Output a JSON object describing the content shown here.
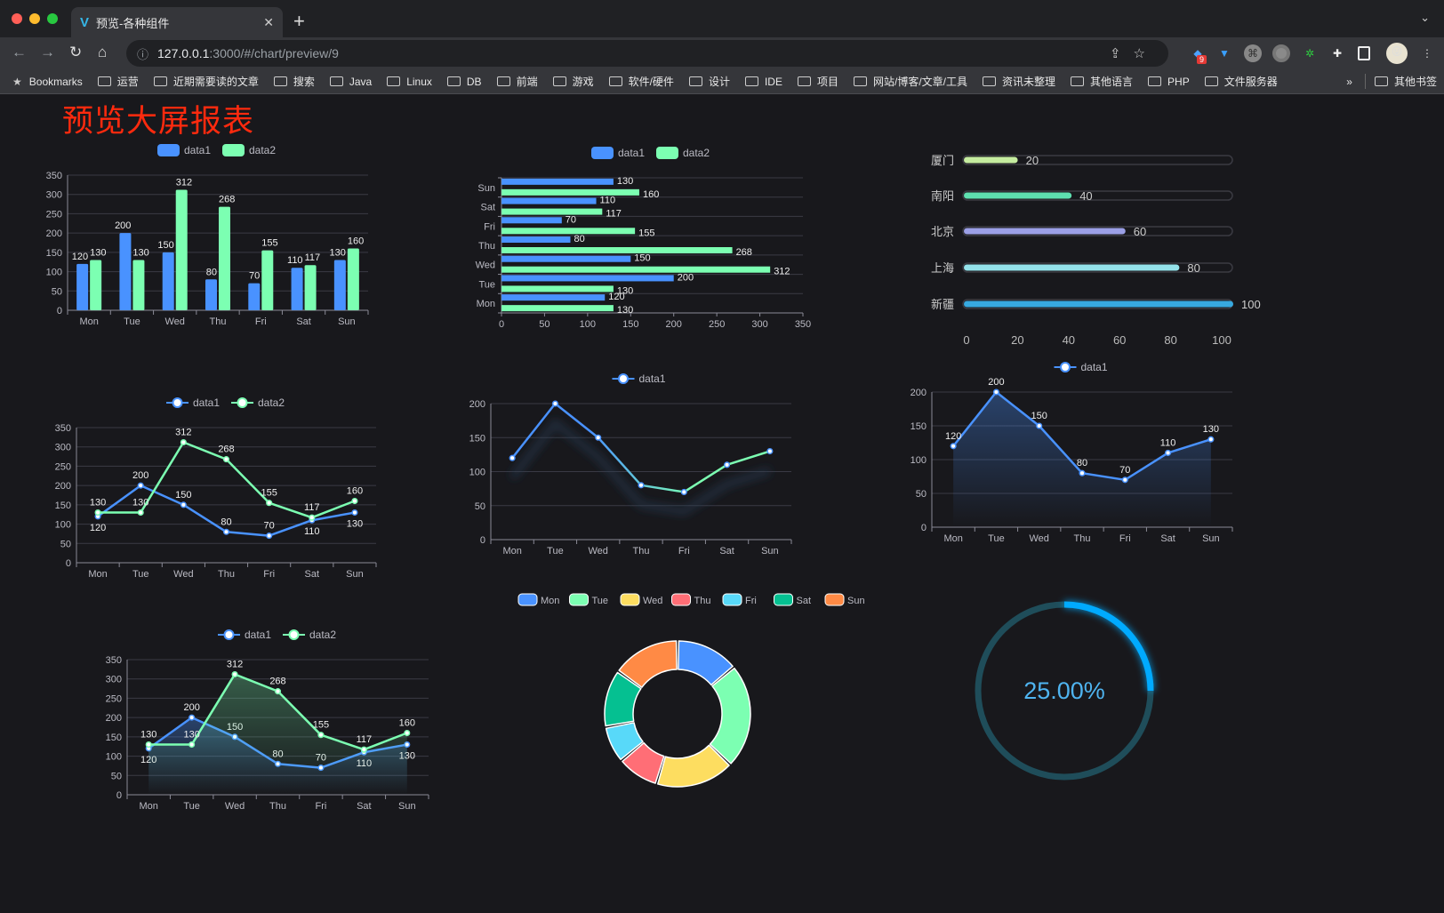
{
  "browser": {
    "tab_title": "预览-各种组件",
    "url_host": "127.0.0.1",
    "url_path": ":3000/#/chart/preview/9",
    "extension_badge": "9",
    "bookmarks": [
      "Bookmarks",
      "运营",
      "近期需要读的文章",
      "搜索",
      "Java",
      "Linux",
      "DB",
      "前端",
      "游戏",
      "软件/硬件",
      "设计",
      "IDE",
      "项目",
      "网站/博客/文章/工具",
      "资讯未整理",
      "其他语言",
      "PHP",
      "文件服务器"
    ],
    "more": "»",
    "other_bookmarks": "其他书签"
  },
  "page": {
    "title": "预览大屏报表",
    "title_color": "#ff2a0e"
  },
  "colors": {
    "data1": "#4992ff",
    "data2": "#7cffb2"
  },
  "chart_data": [
    {
      "type": "bar",
      "categories": [
        "Mon",
        "Tue",
        "Wed",
        "Thu",
        "Fri",
        "Sat",
        "Sun"
      ],
      "ylim": [
        0,
        350
      ],
      "yticks": [
        0,
        50,
        100,
        150,
        200,
        250,
        300,
        350
      ],
      "legend": "top",
      "grid": true,
      "series": [
        {
          "name": "data1",
          "values": [
            120,
            200,
            150,
            80,
            70,
            110,
            130
          ]
        },
        {
          "name": "data2",
          "values": [
            130,
            130,
            312,
            268,
            155,
            117,
            160
          ]
        }
      ]
    },
    {
      "type": "bar",
      "orientation": "horizontal",
      "categories": [
        "Mon",
        "Tue",
        "Wed",
        "Thu",
        "Fri",
        "Sat",
        "Sun"
      ],
      "xlim": [
        0,
        350
      ],
      "xticks": [
        0,
        50,
        100,
        150,
        200,
        250,
        300,
        350
      ],
      "legend": "top",
      "grid": true,
      "series": [
        {
          "name": "data1",
          "values": [
            120,
            200,
            150,
            80,
            70,
            110,
            130
          ]
        },
        {
          "name": "data2",
          "values": [
            130,
            130,
            312,
            268,
            155,
            117,
            160
          ]
        }
      ]
    },
    {
      "type": "bar",
      "orientation": "horizontal",
      "variant": "progress",
      "categories": [
        "厦门",
        "南阳",
        "北京",
        "上海",
        "新疆"
      ],
      "values": [
        20,
        40,
        60,
        80,
        100
      ],
      "xlim": [
        0,
        100
      ],
      "xticks": [
        0,
        20,
        40,
        60,
        80,
        100
      ],
      "colors": [
        "#c5ec9f",
        "#5ee0b0",
        "#9b9fe6",
        "#94e2ea",
        "#37a9e0"
      ]
    },
    {
      "type": "line",
      "categories": [
        "Mon",
        "Tue",
        "Wed",
        "Thu",
        "Fri",
        "Sat",
        "Sun"
      ],
      "ylim": [
        0,
        350
      ],
      "yticks": [
        0,
        50,
        100,
        150,
        200,
        250,
        300,
        350
      ],
      "legend": "top",
      "grid": true,
      "series": [
        {
          "name": "data1",
          "values": [
            120,
            200,
            150,
            80,
            70,
            110,
            130
          ]
        },
        {
          "name": "data2",
          "values": [
            130,
            130,
            312,
            268,
            155,
            117,
            160
          ]
        }
      ]
    },
    {
      "type": "line",
      "categories": [
        "Mon",
        "Tue",
        "Wed",
        "Thu",
        "Fri",
        "Sat",
        "Sun"
      ],
      "ylim": [
        0,
        200
      ],
      "yticks": [
        0,
        50,
        100,
        150,
        200
      ],
      "legend": "top",
      "grid": true,
      "gradient_stroke": [
        "#4992ff",
        "#7cffb2"
      ],
      "series": [
        {
          "name": "data1",
          "values": [
            120,
            200,
            150,
            80,
            70,
            110,
            130
          ]
        }
      ]
    },
    {
      "type": "area",
      "categories": [
        "Mon",
        "Tue",
        "Wed",
        "Thu",
        "Fri",
        "Sat",
        "Sun"
      ],
      "ylim": [
        0,
        200
      ],
      "yticks": [
        0,
        50,
        100,
        150,
        200
      ],
      "legend": "top",
      "grid": true,
      "series": [
        {
          "name": "data1",
          "values": [
            120,
            200,
            150,
            80,
            70,
            110,
            130
          ]
        }
      ]
    },
    {
      "type": "area",
      "categories": [
        "Mon",
        "Tue",
        "Wed",
        "Thu",
        "Fri",
        "Sat",
        "Sun"
      ],
      "ylim": [
        0,
        350
      ],
      "yticks": [
        0,
        50,
        100,
        150,
        200,
        250,
        300,
        350
      ],
      "legend": "top",
      "grid": true,
      "series": [
        {
          "name": "data1",
          "values": [
            120,
            200,
            150,
            80,
            70,
            110,
            130
          ]
        },
        {
          "name": "data2",
          "values": [
            130,
            130,
            312,
            268,
            155,
            117,
            160
          ]
        }
      ]
    },
    {
      "type": "pie",
      "variant": "donut",
      "legend": "top",
      "categories": [
        "Mon",
        "Tue",
        "Wed",
        "Thu",
        "Fri",
        "Sat",
        "Sun"
      ],
      "values": [
        120,
        200,
        150,
        80,
        70,
        110,
        130
      ],
      "colors": [
        "#4992ff",
        "#7cffb2",
        "#fddd60",
        "#ff6e76",
        "#58d9f9",
        "#05c091",
        "#ff8a45"
      ]
    },
    {
      "type": "gauge",
      "value": 0.25,
      "label": "25.00%",
      "color": "#00aaff",
      "track_color": "#1f4d5a"
    }
  ]
}
